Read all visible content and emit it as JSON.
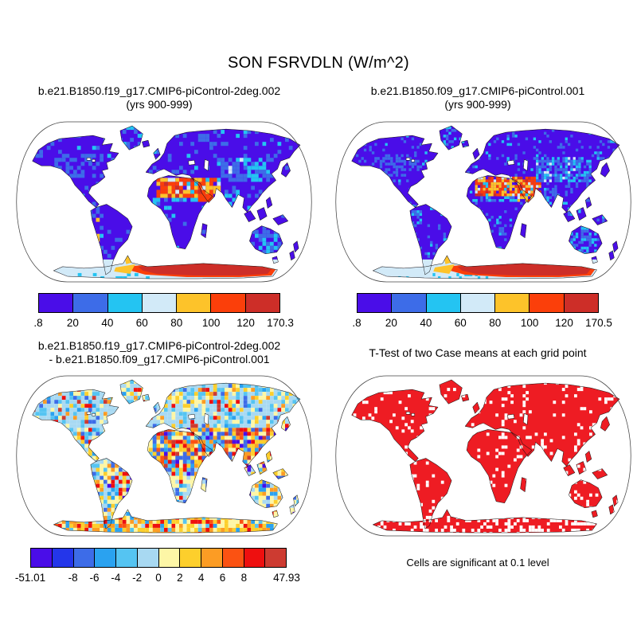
{
  "main_title": "SON FSRVDLN (W/m^2)",
  "chart_data": [
    {
      "type": "heatmap",
      "panel": "top-left",
      "projection": "global-map",
      "title": "b.e21.B1850.f19_g17.CMIP6-piControl-2deg.002",
      "subtitle": "(yrs 900-999)",
      "colorbar": {
        "colors": [
          "#4a0de8",
          "#3d6ce8",
          "#24c4f2",
          "#d2eaf8",
          "#fdc32a",
          "#fb3f0a",
          "#cd2e28"
        ],
        "labels": [
          ".8",
          "20",
          "40",
          "60",
          "80",
          "100",
          "120",
          "170.3"
        ],
        "label_boundaries": [
          0,
          1,
          2,
          3,
          4,
          5,
          6,
          7
        ],
        "min": 0.8,
        "max": 170.3
      }
    },
    {
      "type": "heatmap",
      "panel": "top-right",
      "projection": "global-map",
      "title": "b.e21.B1850.f09_g17.CMIP6-piControl.001",
      "subtitle": "(yrs 900-999)",
      "colorbar": {
        "colors": [
          "#4a0de8",
          "#3d6ce8",
          "#24c4f2",
          "#d2eaf8",
          "#fdc32a",
          "#fb3f0a",
          "#cd2e28"
        ],
        "labels": [
          ".8",
          "20",
          "40",
          "60",
          "80",
          "100",
          "120",
          "170.5"
        ],
        "label_boundaries": [
          0,
          1,
          2,
          3,
          4,
          5,
          6,
          7
        ],
        "min": 0.8,
        "max": 170.5
      }
    },
    {
      "type": "heatmap",
      "panel": "bottom-left",
      "projection": "global-map",
      "title": "b.e21.B1850.f19_g17.CMIP6-piControl-2deg.002",
      "subtitle": "- b.e21.B1850.f09_g17.CMIP6-piControl.001",
      "colorbar": {
        "colors": [
          "#4a0de8",
          "#2436ea",
          "#3d6ce8",
          "#2aa2f0",
          "#55c4f2",
          "#a8d9f2",
          "#fdf6a6",
          "#fdcf2c",
          "#fc9c24",
          "#fb5212",
          "#ee0f0f",
          "#cd3b31"
        ],
        "labels": [
          "-51.01",
          "-8",
          "-6",
          "-4",
          "-2",
          "0",
          "2",
          "4",
          "6",
          "8",
          "47.93"
        ],
        "label_boundaries": [
          0,
          2,
          3,
          4,
          5,
          6,
          7,
          8,
          9,
          10,
          12
        ],
        "min": -51.01,
        "max": 47.93
      }
    },
    {
      "type": "map",
      "panel": "bottom-right",
      "projection": "global-map",
      "title": "T-Test of two Case means at each grid point",
      "caption": "Cells are significant at 0.1 level",
      "significance_color": "#ee1c23"
    }
  ]
}
